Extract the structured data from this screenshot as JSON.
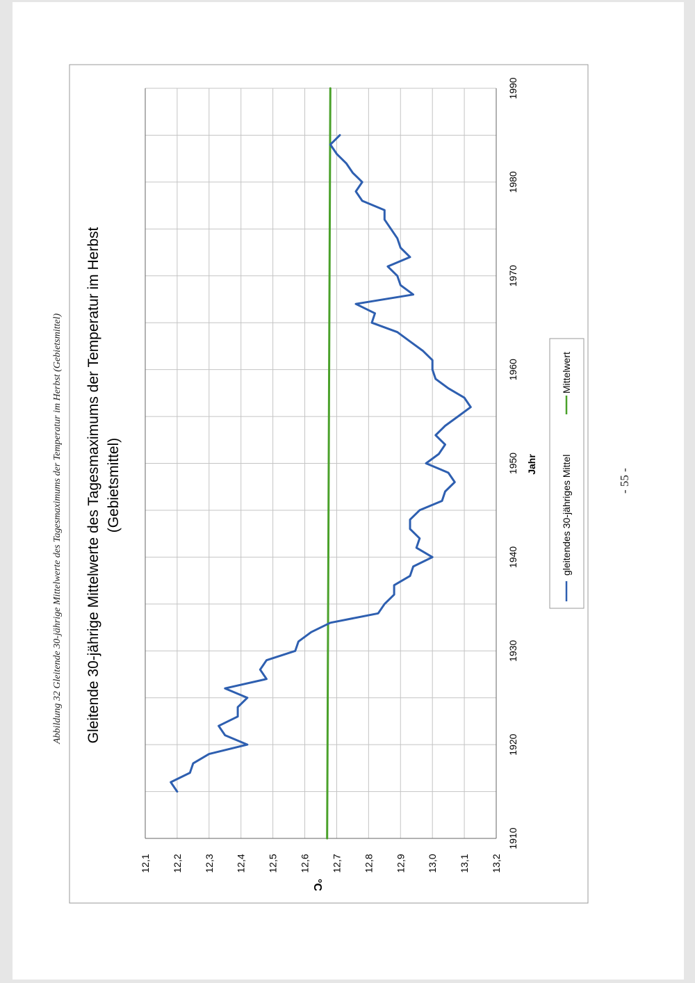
{
  "caption": "Abbildung 32 Gleitende 30-jährige Mittelwerte des Tagesmaximums der Temperatur im Herbst (Gebietsmittel)",
  "page_number": "- 55 -",
  "chart_data": {
    "type": "line",
    "title": "Gleitende 30-jährige Mittelwerte des Tagesmaximums der Temperatur im Herbst",
    "subtitle": "(Gebietsmittel)",
    "xlabel": "Jahr",
    "ylabel": "°C",
    "xlim": [
      1910,
      1990
    ],
    "ylim": [
      12.1,
      13.2
    ],
    "x_ticks": [
      "1910",
      "1920",
      "1930",
      "1940",
      "1950",
      "1960",
      "1970",
      "1980",
      "1990"
    ],
    "y_ticks": [
      "12,1",
      "12,2",
      "12,3",
      "12,4",
      "12,5",
      "12,6",
      "12,7",
      "12,8",
      "12,9",
      "13,0",
      "13,1",
      "13,2"
    ],
    "grid": true,
    "legend_position": "bottom",
    "colors": {
      "series1": "#2e5fb0",
      "series2": "#4aa12a"
    },
    "series": [
      {
        "name": "gleitendes 30-jähriges Mittel",
        "x": [
          1915,
          1916,
          1917,
          1918,
          1919,
          1920,
          1921,
          1922,
          1923,
          1924,
          1925,
          1926,
          1927,
          1928,
          1929,
          1930,
          1931,
          1932,
          1933,
          1934,
          1935,
          1936,
          1937,
          1938,
          1939,
          1940,
          1941,
          1942,
          1943,
          1944,
          1945,
          1946,
          1947,
          1948,
          1949,
          1950,
          1951,
          1952,
          1953,
          1954,
          1955,
          1956,
          1957,
          1958,
          1959,
          1960,
          1961,
          1962,
          1963,
          1964,
          1965,
          1966,
          1967,
          1968,
          1969,
          1970,
          1971,
          1972,
          1973,
          1974,
          1975,
          1976,
          1977,
          1978,
          1979,
          1980,
          1981,
          1982,
          1983,
          1984,
          1985
        ],
        "values": [
          12.2,
          12.18,
          12.24,
          12.25,
          12.3,
          12.42,
          12.35,
          12.33,
          12.39,
          12.39,
          12.42,
          12.35,
          12.48,
          12.46,
          12.48,
          12.57,
          12.58,
          12.62,
          12.68,
          12.83,
          12.85,
          12.88,
          12.88,
          12.93,
          12.94,
          13.0,
          12.95,
          12.96,
          12.93,
          12.93,
          12.96,
          13.03,
          13.04,
          13.07,
          13.05,
          12.98,
          13.02,
          13.04,
          13.01,
          13.04,
          13.08,
          13.12,
          13.1,
          13.05,
          13.01,
          13.0,
          13.0,
          12.97,
          12.93,
          12.89,
          12.81,
          12.82,
          12.76,
          12.94,
          12.9,
          12.89,
          12.86,
          12.93,
          12.9,
          12.89,
          12.87,
          12.85,
          12.85,
          12.78,
          12.76,
          12.78,
          12.75,
          12.73,
          12.7,
          12.68,
          12.71
        ],
        "color": "#2e5fb0"
      },
      {
        "name": "Mittelwert",
        "x": [
          1910,
          1990
        ],
        "values": [
          12.67,
          12.68
        ],
        "color": "#4aa12a"
      }
    ]
  }
}
